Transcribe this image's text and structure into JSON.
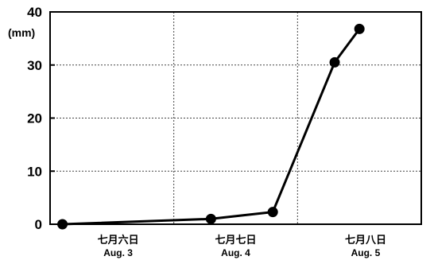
{
  "chart_data": {
    "type": "line",
    "unit_label": "(mm)",
    "y_ticks": [
      0,
      10,
      20,
      30,
      40
    ],
    "ylim": [
      0,
      40
    ],
    "xlim": [
      0,
      3
    ],
    "x_tick_positions": [
      0.55,
      1.5,
      2.55
    ],
    "x_tick_labels": [
      {
        "jp": "七月六日",
        "en": "Aug. 3"
      },
      {
        "jp": "七月七日",
        "en": "Aug. 4"
      },
      {
        "jp": "七月八日",
        "en": "Aug. 5"
      }
    ],
    "vertical_gridlines": [
      1,
      2
    ],
    "grid": true,
    "series": [
      {
        "color": "#000000",
        "points": [
          {
            "x": 0.1,
            "y": 0
          },
          {
            "x": 1.3,
            "y": 1
          },
          {
            "x": 1.8,
            "y": 2.3
          },
          {
            "x": 2.3,
            "y": 30.5
          },
          {
            "x": 2.5,
            "y": 36.8
          }
        ]
      }
    ]
  }
}
